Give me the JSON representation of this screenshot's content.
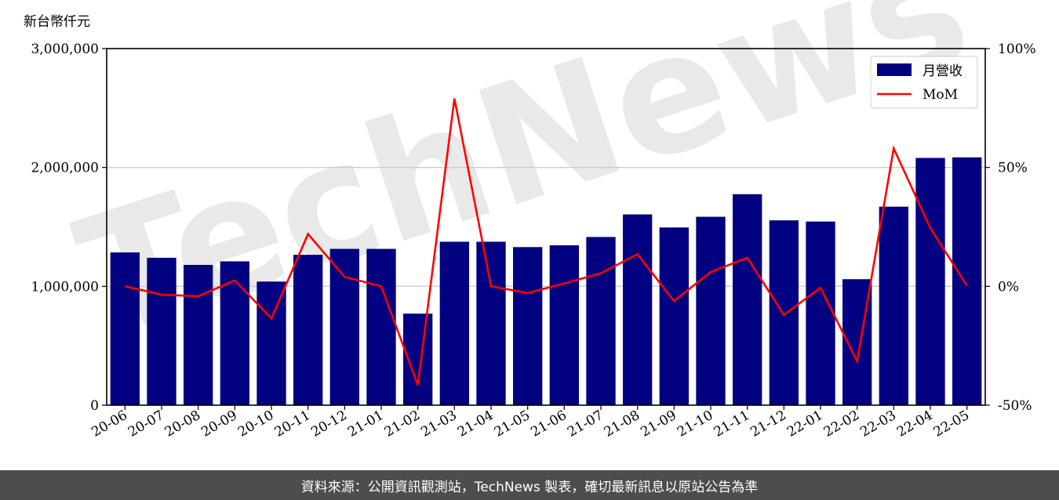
{
  "chart_data": {
    "type": "bar",
    "y_unit_label": "新台幣仟元",
    "categories": [
      "20-06",
      "20-07",
      "20-08",
      "20-09",
      "20-10",
      "20-11",
      "20-12",
      "21-01",
      "21-02",
      "21-03",
      "21-04",
      "21-05",
      "21-06",
      "21-07",
      "21-08",
      "21-09",
      "21-10",
      "21-11",
      "21-12",
      "22-01",
      "22-02",
      "22-03",
      "22-04",
      "22-05"
    ],
    "series": [
      {
        "name": "月營收",
        "type": "bar",
        "axis": "left",
        "color": "#000080",
        "values": [
          1285000,
          1240000,
          1180000,
          1210000,
          1040000,
          1265000,
          1315000,
          1315000,
          770000,
          1375000,
          1375000,
          1330000,
          1345000,
          1415000,
          1605000,
          1495000,
          1585000,
          1775000,
          1555000,
          1545000,
          1060000,
          1670000,
          2080000,
          2085000
        ]
      },
      {
        "name": "MoM",
        "type": "line",
        "axis": "right",
        "color": "#ff0000",
        "values": [
          0.0,
          -3.5,
          -4.2,
          2.5,
          -13.5,
          22.0,
          4.0,
          0.0,
          -41.5,
          79.0,
          0.0,
          -2.8,
          1.2,
          5.5,
          13.5,
          -6.2,
          6.0,
          12.0,
          -12.0,
          -0.6,
          -31.5,
          58.0,
          24.5,
          0.3
        ]
      }
    ],
    "ylim": [
      0,
      3000000
    ],
    "y_ticks": [
      0,
      1000000,
      2000000,
      3000000
    ],
    "y_tick_labels": [
      "0",
      "1,000,000",
      "2,000,000",
      "3,000,000"
    ],
    "y2lim": [
      -50,
      100
    ],
    "y2_ticks": [
      -50,
      0,
      50,
      100
    ],
    "y2_tick_labels": [
      "-50%",
      "0%",
      "50%",
      "100%"
    ],
    "grid": "horizontal",
    "legend_position": "top-right"
  },
  "watermark": "TechNews",
  "footer": {
    "text": "資料來源：公開資訊觀測站，TechNews 製表，確切最新訊息以原站公告為準"
  }
}
